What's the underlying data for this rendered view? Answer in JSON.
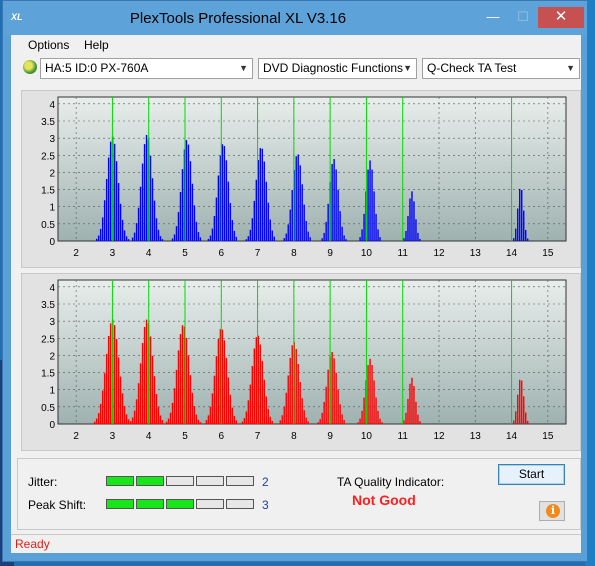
{
  "window": {
    "app_icon_text": "XL",
    "title": "PlexTools Professional XL V3.16",
    "minimize_glyph": "—",
    "maximize_glyph": "☐",
    "close_glyph": "✕"
  },
  "menu": [
    {
      "label": "Options",
      "mnemonic": "O"
    },
    {
      "label": "Help",
      "mnemonic": "H"
    }
  ],
  "toolbar": {
    "drive_icon": "disc-drive-icon",
    "drive_select": "HA:5 ID:0  PX-760A",
    "function_select": "DVD Diagnostic Functions",
    "test_select": "Q-Check TA Test"
  },
  "colors": {
    "top_bars": "#0000ff",
    "bottom_bars": "#ff0000",
    "markers": "#00dd00",
    "plot_bg_top": "#e8eeec",
    "plot_bg_bottom": "#9fb2b0",
    "meter_on": "#19e619",
    "quality_bad": "#ff1f1f"
  },
  "chart_data": [
    {
      "type": "bar",
      "series_color": "#0000ff",
      "xlim": [
        1.5,
        15.5
      ],
      "ylim": [
        0,
        4.2
      ],
      "xticks": [
        "2",
        "3",
        "4",
        "5",
        "6",
        "7",
        "8",
        "9",
        "10",
        "11",
        "12",
        "13",
        "14",
        "15"
      ],
      "yticks": [
        "0",
        "0.5",
        "1",
        "1.5",
        "2",
        "2.5",
        "3",
        "3.5",
        "4"
      ],
      "markers": [
        3,
        4,
        5,
        6,
        7,
        8,
        9,
        10,
        11,
        14
      ],
      "peaks": [
        {
          "center": 3.0,
          "height": 3.05,
          "width": 0.28
        },
        {
          "center": 3.95,
          "height": 3.1,
          "width": 0.27
        },
        {
          "center": 5.05,
          "height": 2.95,
          "width": 0.26
        },
        {
          "center": 6.05,
          "height": 2.85,
          "width": 0.26
        },
        {
          "center": 7.1,
          "height": 2.75,
          "width": 0.26
        },
        {
          "center": 8.1,
          "height": 2.55,
          "width": 0.25
        },
        {
          "center": 9.1,
          "height": 2.4,
          "width": 0.22
        },
        {
          "center": 10.1,
          "height": 2.35,
          "width": 0.2
        },
        {
          "center": 11.25,
          "height": 1.45,
          "width": 0.16
        },
        {
          "center": 14.25,
          "height": 1.6,
          "width": 0.14
        }
      ],
      "grid": true
    },
    {
      "type": "bar",
      "series_color": "#ff0000",
      "xlim": [
        1.5,
        15.5
      ],
      "ylim": [
        0,
        4.2
      ],
      "xticks": [
        "2",
        "3",
        "4",
        "5",
        "6",
        "7",
        "8",
        "9",
        "10",
        "11",
        "12",
        "13",
        "14",
        "15"
      ],
      "yticks": [
        "0",
        "0.5",
        "1",
        "1.5",
        "2",
        "2.5",
        "3",
        "3.5",
        "4"
      ],
      "markers": [
        3,
        4,
        5,
        6,
        7,
        8,
        9,
        10,
        11,
        14
      ],
      "peaks": [
        {
          "center": 3.0,
          "height": 3.05,
          "width": 0.32
        },
        {
          "center": 3.95,
          "height": 3.05,
          "width": 0.3
        },
        {
          "center": 4.95,
          "height": 2.9,
          "width": 0.3
        },
        {
          "center": 6.0,
          "height": 2.8,
          "width": 0.29
        },
        {
          "center": 7.0,
          "height": 2.6,
          "width": 0.28
        },
        {
          "center": 8.0,
          "height": 2.4,
          "width": 0.27
        },
        {
          "center": 9.05,
          "height": 2.1,
          "width": 0.25
        },
        {
          "center": 10.1,
          "height": 1.9,
          "width": 0.22
        },
        {
          "center": 11.25,
          "height": 1.35,
          "width": 0.17
        },
        {
          "center": 14.25,
          "height": 1.35,
          "width": 0.15
        }
      ],
      "grid": true
    }
  ],
  "results": {
    "jitter_label": "Jitter:",
    "jitter_value": "2",
    "jitter_level": 2,
    "peak_label": "Peak Shift:",
    "peak_value": "3",
    "peak_level": 3,
    "segments_total": 5,
    "ta_label": "TA Quality Indicator:",
    "ta_result": "Not Good"
  },
  "buttons": {
    "start_label": "Start",
    "info_icon": "info-icon",
    "info_glyph": "i"
  },
  "status": {
    "text": "Ready"
  }
}
